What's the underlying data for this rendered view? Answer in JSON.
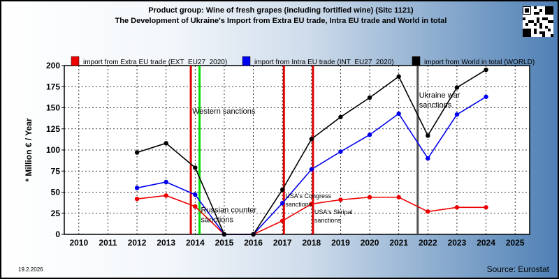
{
  "title_line1": "Product group: Wine of fresh grapes (including fortified wine) (Sitc 1121)",
  "title_line2": "The Development of Ukraine's Import from Extra EU trade, Intra EU trade and World in total",
  "date": "19.2.2026",
  "source": "Source: Eurostat",
  "chart_data": {
    "type": "line",
    "ylabel": "* Million € / Year",
    "xlabel": "",
    "ylim": [
      0,
      200
    ],
    "xlim": [
      2010,
      2025
    ],
    "yticks": [
      0,
      25,
      50,
      75,
      100,
      125,
      150,
      175,
      200
    ],
    "xticks": [
      2010,
      2011,
      2012,
      2013,
      2014,
      2015,
      2016,
      2017,
      2018,
      2019,
      2020,
      2021,
      2022,
      2023,
      2024,
      2025
    ],
    "grid": true,
    "legend_position": "top",
    "x": [
      2012,
      2013,
      2014,
      2015,
      2016,
      2017,
      2018,
      2019,
      2020,
      2021,
      2022,
      2023,
      2024
    ],
    "series": [
      {
        "name": "import from Extra EU trade (EXT_EU27_2020)",
        "color": "#ee0000",
        "values": [
          42,
          46,
          33,
          0,
          0,
          16,
          36,
          41,
          44,
          44,
          27,
          32,
          32
        ]
      },
      {
        "name": "import from Intra EU trade (INT_EU27_2020)",
        "color": "#0000ee",
        "values": [
          55,
          62,
          47,
          0,
          0,
          37,
          77,
          98,
          118,
          143,
          90,
          142,
          163
        ]
      },
      {
        "name": "import from World in total (WORLD)",
        "color": "#000000",
        "values": [
          97,
          108,
          79,
          0,
          0,
          53,
          113,
          139,
          162,
          187,
          117,
          174,
          195
        ]
      }
    ],
    "events": [
      {
        "x": 2013.85,
        "color": "#dd0000",
        "label": "Western sanctions",
        "label_y": 143
      },
      {
        "x": 2014.15,
        "color": "#00dd00",
        "label": "Russian counter sanctions",
        "label_y": 26
      },
      {
        "x": 2017.05,
        "color": "#dd0000",
        "label": "USA's Congress sanctions",
        "label_y": 43
      },
      {
        "x": 2018.05,
        "color": "#dd0000",
        "label": "USA's Skripal sanctions",
        "label_y": 24
      },
      {
        "x": 2021.65,
        "color": "#555555",
        "label": "Ukraine war sanctions",
        "label_y": 162
      }
    ]
  }
}
